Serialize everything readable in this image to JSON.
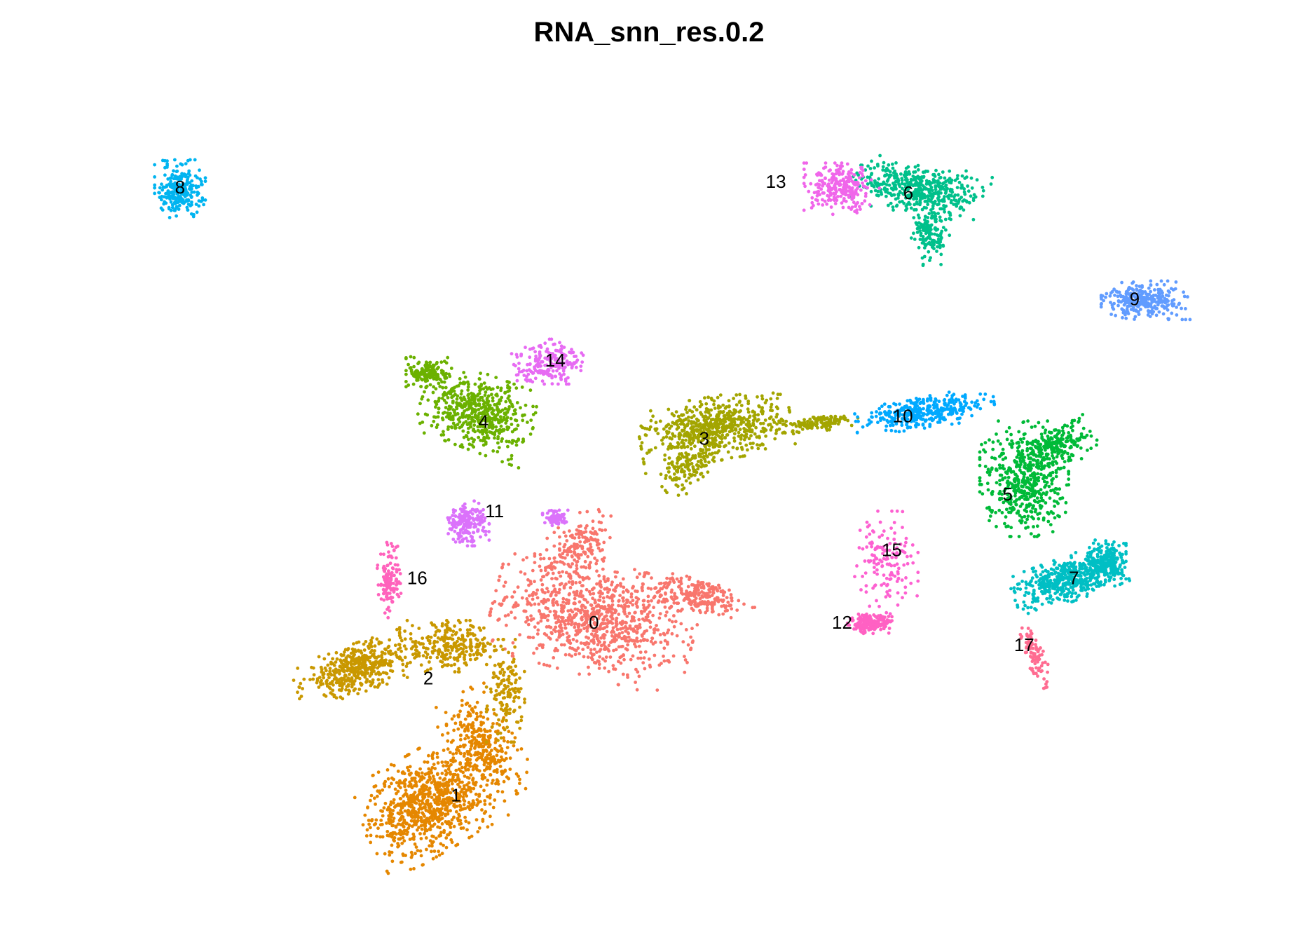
{
  "chart_data": {
    "type": "scatter",
    "title": "RNA_snn_res.0.2",
    "xlabel": "",
    "ylabel": "",
    "grid": false,
    "axes_visible": false,
    "legend": "none",
    "clusters": [
      {
        "label": "0",
        "color": "#F8766D",
        "shapes": [
          {
            "cx": 0.0,
            "cy": -0.7,
            "sx": 1.6,
            "sy": 0.9,
            "rot": -15,
            "n": 900
          },
          {
            "cx": 1.9,
            "cy": -0.3,
            "sx": 0.9,
            "sy": 0.3,
            "rot": -10,
            "n": 240
          },
          {
            "cx": -0.3,
            "cy": 0.6,
            "sx": 0.7,
            "sy": 0.4,
            "rot": 35,
            "n": 180
          }
        ]
      },
      {
        "label": "1",
        "color": "#E58700",
        "shapes": [
          {
            "cx": -3.0,
            "cy": -4.0,
            "sx": 1.1,
            "sy": 0.8,
            "rot": 30,
            "n": 850
          },
          {
            "cx": -2.0,
            "cy": -3.0,
            "sx": 0.5,
            "sy": 0.9,
            "rot": 30,
            "n": 300
          }
        ]
      },
      {
        "label": "2",
        "color": "#C99800",
        "shapes": [
          {
            "cx": -4.3,
            "cy": -1.6,
            "sx": 1.0,
            "sy": 0.38,
            "rot": 18,
            "n": 450
          },
          {
            "cx": -2.6,
            "cy": -1.2,
            "sx": 0.8,
            "sy": 0.4,
            "rot": 0,
            "n": 250
          },
          {
            "cx": -1.6,
            "cy": -2.0,
            "sx": 0.3,
            "sy": 0.8,
            "rot": 0,
            "n": 150
          }
        ]
      },
      {
        "label": "3",
        "color": "#A3A500",
        "shapes": [
          {
            "cx": 2.2,
            "cy": 2.7,
            "sx": 1.2,
            "sy": 0.5,
            "rot": 10,
            "n": 650
          },
          {
            "cx": 1.7,
            "cy": 2.0,
            "sx": 0.5,
            "sy": 0.3,
            "rot": 40,
            "n": 120
          },
          {
            "cx": 4.1,
            "cy": 2.8,
            "sx": 0.6,
            "sy": 0.12,
            "rot": 5,
            "n": 120
          }
        ]
      },
      {
        "label": "4",
        "color": "#6BB100",
        "shapes": [
          {
            "cx": -2.1,
            "cy": 3.0,
            "sx": 0.9,
            "sy": 0.6,
            "rot": -20,
            "n": 550
          },
          {
            "cx": -3.0,
            "cy": 3.7,
            "sx": 0.35,
            "sy": 0.25,
            "rot": 0,
            "n": 150
          }
        ]
      },
      {
        "label": "5",
        "color": "#00BA38",
        "shapes": [
          {
            "cx": 7.8,
            "cy": 1.8,
            "sx": 0.7,
            "sy": 0.9,
            "rot": 0,
            "n": 500
          },
          {
            "cx": 8.4,
            "cy": 2.4,
            "sx": 0.6,
            "sy": 0.35,
            "rot": 25,
            "n": 200
          }
        ]
      },
      {
        "label": "6",
        "color": "#00C08B",
        "shapes": [
          {
            "cx": 5.9,
            "cy": 7.0,
            "sx": 1.1,
            "sy": 0.4,
            "rot": -10,
            "n": 450
          },
          {
            "cx": 6.1,
            "cy": 6.2,
            "sx": 0.3,
            "sy": 0.5,
            "rot": 0,
            "n": 150
          }
        ]
      },
      {
        "label": "7",
        "color": "#00BFC4",
        "shapes": [
          {
            "cx": 8.6,
            "cy": 0.0,
            "sx": 0.9,
            "sy": 0.35,
            "rot": 20,
            "n": 500
          },
          {
            "cx": 9.3,
            "cy": 0.3,
            "sx": 0.3,
            "sy": 0.35,
            "rot": 0,
            "n": 200
          }
        ]
      },
      {
        "label": "8",
        "color": "#00B4F0",
        "shapes": [
          {
            "cx": -7.5,
            "cy": 7.0,
            "sx": 0.4,
            "sy": 0.45,
            "rot": 0,
            "n": 250
          }
        ]
      },
      {
        "label": "9",
        "color": "#619CFF",
        "shapes": [
          {
            "cx": 10.0,
            "cy": 5.0,
            "sx": 0.7,
            "sy": 0.3,
            "rot": 0,
            "n": 300
          }
        ]
      },
      {
        "label": "10",
        "color": "#00A9FF",
        "shapes": [
          {
            "cx": 6.0,
            "cy": 3.0,
            "sx": 1.1,
            "sy": 0.25,
            "rot": 8,
            "n": 350
          }
        ]
      },
      {
        "label": "11",
        "color": "#DB72FB",
        "shapes": [
          {
            "cx": -2.3,
            "cy": 1.0,
            "sx": 0.35,
            "sy": 0.35,
            "rot": 0,
            "n": 200
          },
          {
            "cx": -0.7,
            "cy": 1.1,
            "sx": 0.2,
            "sy": 0.12,
            "rot": 0,
            "n": 80
          }
        ]
      },
      {
        "label": "12",
        "color": "#FF61C3",
        "shapes": [
          {
            "cx": 5.0,
            "cy": -0.8,
            "sx": 0.35,
            "sy": 0.15,
            "rot": 0,
            "n": 200
          }
        ]
      },
      {
        "label": "13",
        "color": "#F066EA",
        "shapes": [
          {
            "cx": 4.5,
            "cy": 7.0,
            "sx": 0.6,
            "sy": 0.4,
            "rot": 0,
            "n": 250
          }
        ]
      },
      {
        "label": "14",
        "color": "#E76BF3",
        "shapes": [
          {
            "cx": -0.8,
            "cy": 3.9,
            "sx": 0.6,
            "sy": 0.35,
            "rot": 0,
            "n": 200
          }
        ]
      },
      {
        "label": "15",
        "color": "#FD61D1",
        "shapes": [
          {
            "cx": 5.3,
            "cy": 0.3,
            "sx": 0.5,
            "sy": 0.8,
            "rot": 0,
            "n": 150
          }
        ]
      },
      {
        "label": "16",
        "color": "#FF62BC",
        "shapes": [
          {
            "cx": -3.7,
            "cy": 0.0,
            "sx": 0.2,
            "sy": 0.6,
            "rot": 0,
            "n": 130
          }
        ]
      },
      {
        "label": "17",
        "color": "#FF6C91",
        "shapes": [
          {
            "cx": 8.0,
            "cy": -1.4,
            "sx": 0.15,
            "sy": 0.5,
            "rot": 20,
            "n": 90
          }
        ]
      }
    ],
    "label_positions": [
      {
        "label": "0",
        "x": 0.0,
        "y": -0.8
      },
      {
        "label": "1",
        "x": -2.5,
        "y": -3.9
      },
      {
        "label": "2",
        "x": -3.0,
        "y": -1.8
      },
      {
        "label": "3",
        "x": 2.0,
        "y": 2.5
      },
      {
        "label": "4",
        "x": -2.0,
        "y": 2.8
      },
      {
        "label": "5",
        "x": 7.5,
        "y": 1.5
      },
      {
        "label": "6",
        "x": 5.7,
        "y": 6.9
      },
      {
        "label": "7",
        "x": 8.7,
        "y": 0.0
      },
      {
        "label": "8",
        "x": -7.5,
        "y": 7.0
      },
      {
        "label": "9",
        "x": 9.8,
        "y": 5.0
      },
      {
        "label": "10",
        "x": 5.6,
        "y": 2.9
      },
      {
        "label": "11",
        "x": -1.8,
        "y": 1.2
      },
      {
        "label": "12",
        "x": 4.5,
        "y": -0.8
      },
      {
        "label": "13",
        "x": 3.3,
        "y": 7.1
      },
      {
        "label": "14",
        "x": -0.7,
        "y": 3.9
      },
      {
        "label": "15",
        "x": 5.4,
        "y": 0.5
      },
      {
        "label": "16",
        "x": -3.2,
        "y": 0.0
      },
      {
        "label": "17",
        "x": 7.8,
        "y": -1.2
      }
    ],
    "xlim": [
      -10,
      12
    ],
    "ylim": [
      -6,
      9
    ]
  }
}
